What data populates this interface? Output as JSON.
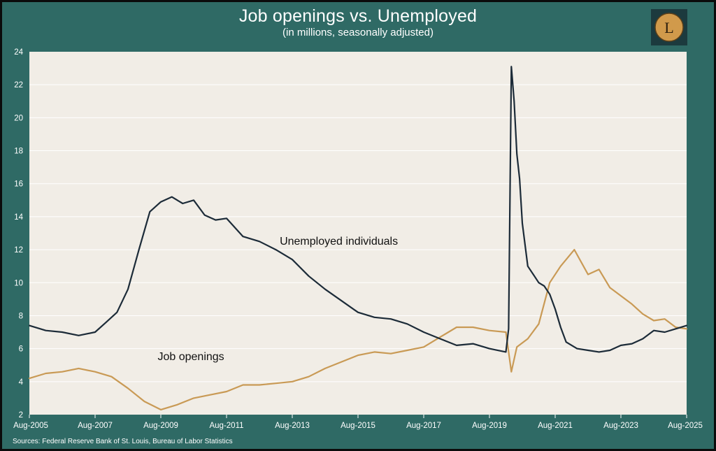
{
  "colors": {
    "background": "#2f6a65",
    "plot_background": "#f1ede6",
    "unemployed_line": "#1c2b38",
    "job_openings_line": "#c99a55",
    "text": "#ffffff",
    "logo_circle": "#d19a4b"
  },
  "logo": {
    "letter": "L"
  },
  "source": "Sources: Federal Reserve Bank of St. Louis, Bureau of Labor Statistics",
  "chart_data": {
    "type": "line",
    "title": "Job openings vs. Unemployed",
    "subtitle": "(in millions, seasonally adjusted)",
    "xlabel": "",
    "ylabel": "",
    "xlim": [
      "2005-08",
      "2025-08"
    ],
    "ylim": [
      2,
      24
    ],
    "yticks": [
      2,
      4,
      6,
      8,
      10,
      12,
      14,
      16,
      18,
      20,
      22,
      24
    ],
    "xticks": [
      "Aug-2005",
      "Aug-2007",
      "Aug-2009",
      "Aug-2011",
      "Aug-2013",
      "Aug-2015",
      "Aug-2017",
      "Aug-2019",
      "Aug-2021",
      "Aug-2023",
      "Aug-2025"
    ],
    "grid": true,
    "legend": "none",
    "annotations": [
      {
        "text": "Unemployed individuals",
        "x": "2015-01",
        "y": 12.3
      },
      {
        "text": "Job openings",
        "x": "2010-07",
        "y": 5.3
      }
    ],
    "series": [
      {
        "name": "Unemployed individuals",
        "color": "#1c2b38",
        "x": [
          "2005-08",
          "2006-02",
          "2006-08",
          "2007-02",
          "2007-08",
          "2007-12",
          "2008-04",
          "2008-08",
          "2008-12",
          "2009-04",
          "2009-08",
          "2009-12",
          "2010-04",
          "2010-08",
          "2010-12",
          "2011-04",
          "2011-08",
          "2012-02",
          "2012-08",
          "2013-02",
          "2013-08",
          "2014-02",
          "2014-08",
          "2015-02",
          "2015-08",
          "2016-02",
          "2016-08",
          "2017-02",
          "2017-08",
          "2018-02",
          "2018-08",
          "2019-02",
          "2019-08",
          "2020-02",
          "2020-03",
          "2020-04",
          "2020-05",
          "2020-06",
          "2020-07",
          "2020-08",
          "2020-10",
          "2020-12",
          "2021-02",
          "2021-04",
          "2021-06",
          "2021-08",
          "2021-10",
          "2021-12",
          "2022-04",
          "2022-08",
          "2022-12",
          "2023-04",
          "2023-08",
          "2023-12",
          "2024-04",
          "2024-08",
          "2024-12",
          "2025-04",
          "2025-08"
        ],
        "y": [
          7.4,
          7.1,
          7.0,
          6.8,
          7.0,
          7.6,
          8.2,
          9.6,
          12.0,
          14.3,
          14.9,
          15.2,
          14.8,
          15.0,
          14.1,
          13.8,
          13.9,
          12.8,
          12.5,
          12.0,
          11.4,
          10.4,
          9.6,
          8.9,
          8.2,
          7.9,
          7.8,
          7.5,
          7.0,
          6.6,
          6.2,
          6.3,
          6.0,
          5.8,
          7.2,
          23.1,
          21.0,
          17.8,
          16.3,
          13.6,
          11.0,
          10.5,
          10.0,
          9.8,
          9.3,
          8.4,
          7.3,
          6.4,
          6.0,
          5.9,
          5.8,
          5.9,
          6.2,
          6.3,
          6.6,
          7.1,
          7.0,
          7.2,
          7.4
        ]
      },
      {
        "name": "Job openings",
        "color": "#c99a55",
        "x": [
          "2005-08",
          "2006-02",
          "2006-08",
          "2007-02",
          "2007-08",
          "2008-02",
          "2008-08",
          "2009-02",
          "2009-08",
          "2010-02",
          "2010-08",
          "2011-02",
          "2011-08",
          "2012-02",
          "2012-08",
          "2013-02",
          "2013-08",
          "2014-02",
          "2014-08",
          "2015-02",
          "2015-08",
          "2016-02",
          "2016-08",
          "2017-02",
          "2017-08",
          "2018-02",
          "2018-08",
          "2019-02",
          "2019-08",
          "2020-02",
          "2020-04",
          "2020-06",
          "2020-10",
          "2021-02",
          "2021-06",
          "2021-10",
          "2022-03",
          "2022-08",
          "2022-12",
          "2023-04",
          "2023-08",
          "2023-12",
          "2024-04",
          "2024-08",
          "2024-12",
          "2025-04",
          "2025-08"
        ],
        "y": [
          4.2,
          4.5,
          4.6,
          4.8,
          4.6,
          4.3,
          3.6,
          2.8,
          2.3,
          2.6,
          3.0,
          3.2,
          3.4,
          3.8,
          3.8,
          3.9,
          4.0,
          4.3,
          4.8,
          5.2,
          5.6,
          5.8,
          5.7,
          5.9,
          6.1,
          6.7,
          7.3,
          7.3,
          7.1,
          7.0,
          4.6,
          6.1,
          6.6,
          7.5,
          10.0,
          11.0,
          12.0,
          10.5,
          10.8,
          9.7,
          9.2,
          8.7,
          8.1,
          7.7,
          7.8,
          7.3,
          7.2
        ]
      }
    ]
  }
}
